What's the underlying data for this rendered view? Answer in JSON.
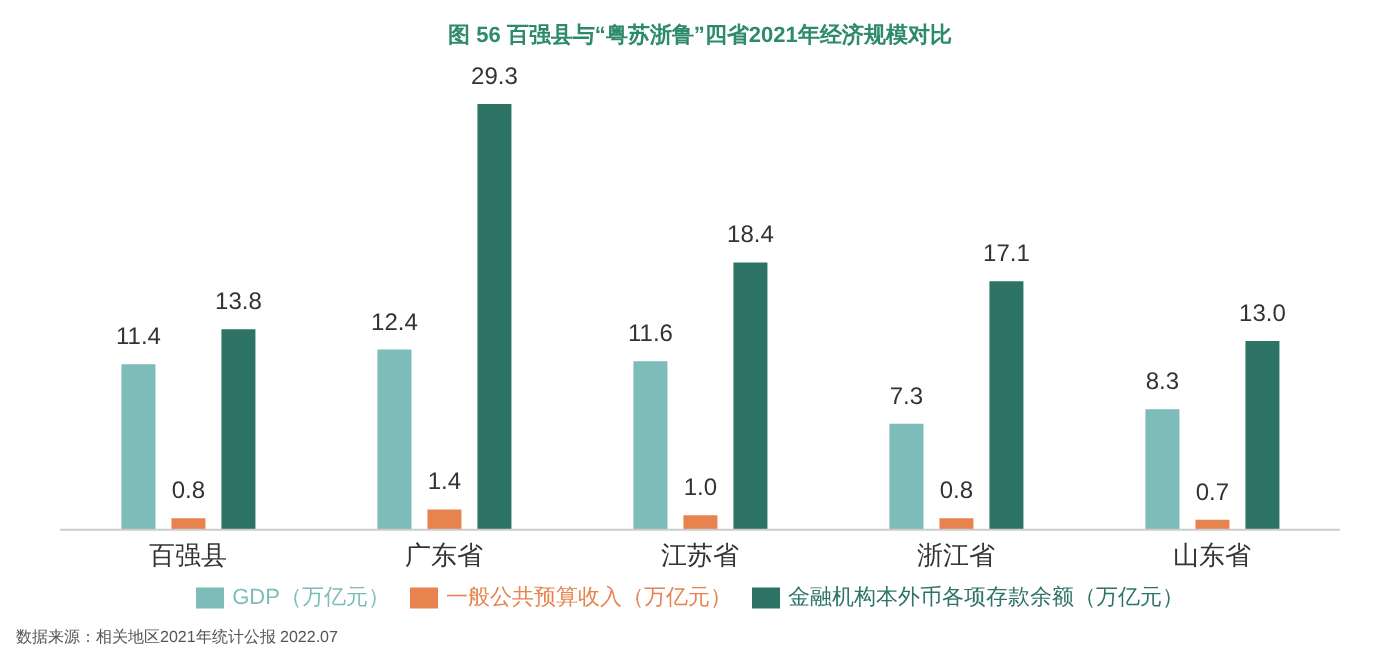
{
  "chart_data": {
    "type": "bar",
    "title": "图 56  百强县与“粤苏浙鲁”四省2021年经济规模对比",
    "categories": [
      "百强县",
      "广东省",
      "江苏省",
      "浙江省",
      "山东省"
    ],
    "series": [
      {
        "name": "GDP（万亿元）",
        "color": "#7dbcb9",
        "values": [
          11.4,
          12.4,
          11.6,
          7.3,
          8.3
        ],
        "value_labels": [
          "11.4",
          "12.4",
          "11.6",
          "7.3",
          "8.3"
        ]
      },
      {
        "name": "一般公共预算收入（万亿元）",
        "color": "#e7834f",
        "values": [
          0.8,
          1.4,
          1.0,
          0.8,
          0.7
        ],
        "value_labels": [
          "0.8",
          "1.4",
          "1.0",
          "0.8",
          "0.7"
        ]
      },
      {
        "name": "金融机构本外币各项存款余额（万亿元）",
        "color": "#2e7466",
        "values": [
          13.8,
          29.3,
          18.4,
          17.1,
          13.0
        ],
        "value_labels": [
          "13.8",
          "29.3",
          "18.4",
          "17.1",
          "13.0"
        ]
      }
    ],
    "legend": "bottom",
    "grid": false,
    "annotations": [
      "数据来源：相关地区2021年统计公报 2022.07"
    ]
  }
}
